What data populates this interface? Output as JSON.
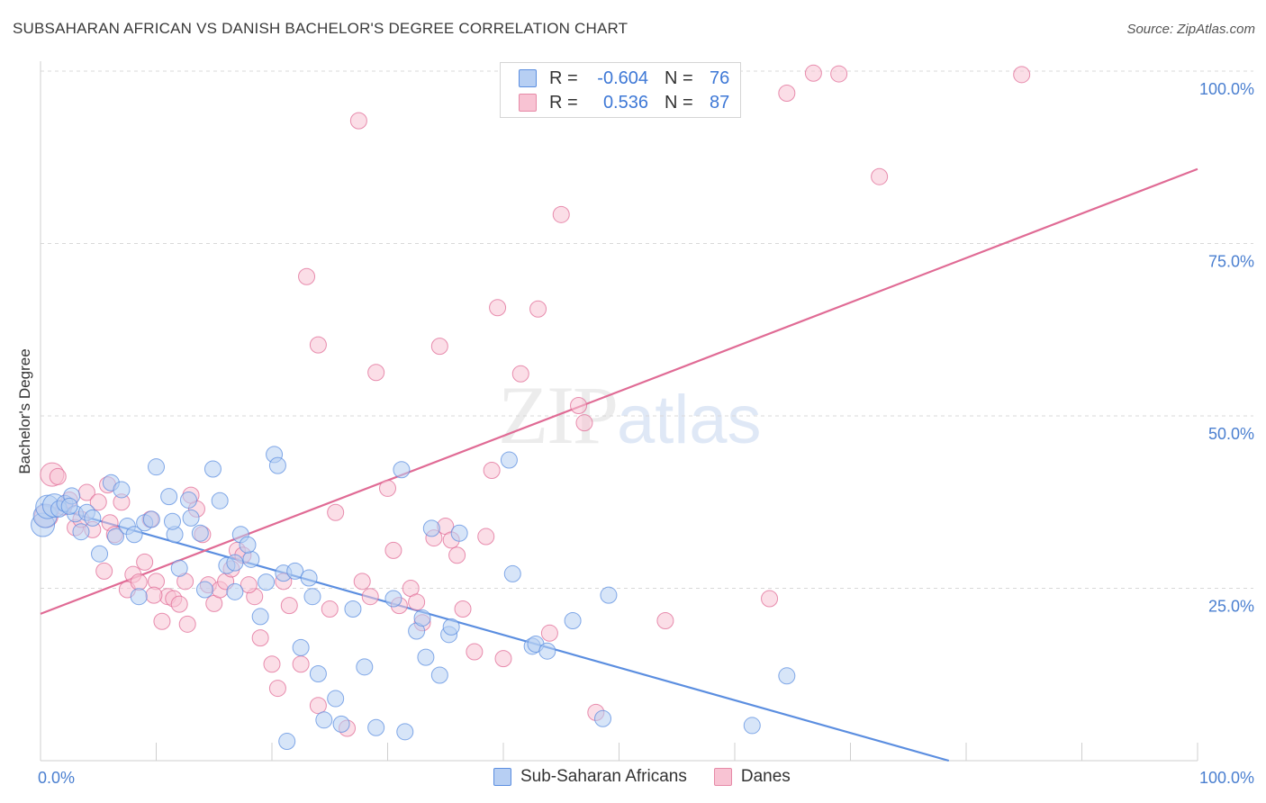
{
  "title": "SUBSAHARAN AFRICAN VS DANISH BACHELOR'S DEGREE CORRELATION CHART",
  "source": "Source: ZipAtlas.com",
  "watermark": {
    "zip": "ZIP",
    "atlas": "atlas"
  },
  "legend": {
    "rows": [
      {
        "r_label": "R =",
        "r_value": "-0.604",
        "n_label": "N =",
        "n_value": "76",
        "fill": "#b7cff3",
        "stroke": "#5b8ee0"
      },
      {
        "r_label": "R =",
        "r_value": "0.536",
        "n_label": "N =",
        "n_value": "87",
        "fill": "#f8c3d3",
        "stroke": "#e68aa7"
      }
    ]
  },
  "bottom_legend": {
    "items": [
      {
        "label": "Sub-Saharan Africans",
        "fill": "#b7cff3",
        "stroke": "#5b8ee0"
      },
      {
        "label": "Danes",
        "fill": "#f8c3d3",
        "stroke": "#e68aa7"
      }
    ]
  },
  "chart_data": {
    "type": "scatter",
    "title": "SUBSAHARAN AFRICAN VS DANISH BACHELOR'S DEGREE CORRELATION CHART",
    "xlabel": "",
    "ylabel": "Bachelor's Degree",
    "xlim": [
      0,
      100
    ],
    "ylim": [
      0,
      100
    ],
    "x_tick_labels": [
      "0.0%",
      "100.0%"
    ],
    "y_ticks": [
      25,
      50,
      75,
      100
    ],
    "y_tick_labels": [
      "25.0%",
      "50.0%",
      "75.0%",
      "100.0%"
    ],
    "grid": "horizontal dashed",
    "legend_position": "top-center",
    "series": [
      {
        "name": "Sub-Saharan Africans",
        "color": "#5b8ee0",
        "fill": "#b7cff3",
        "trend": {
          "x": [
            0,
            78.5
          ],
          "y": [
            37.2,
            0
          ]
        },
        "points": [
          [
            0.2,
            34.2
          ],
          [
            0.4,
            35.5
          ],
          [
            0.6,
            36.8
          ],
          [
            1.2,
            37.0
          ],
          [
            1.6,
            36.5
          ],
          [
            2.1,
            37.3
          ],
          [
            2.7,
            38.4
          ],
          [
            3.0,
            35.8
          ],
          [
            3.5,
            33.2
          ],
          [
            4.0,
            36.0
          ],
          [
            4.5,
            35.2
          ],
          [
            5.1,
            30.0
          ],
          [
            6.1,
            40.3
          ],
          [
            6.5,
            32.5
          ],
          [
            7.0,
            39.3
          ],
          [
            7.5,
            34.0
          ],
          [
            8.1,
            32.8
          ],
          [
            8.5,
            23.8
          ],
          [
            9.0,
            34.5
          ],
          [
            9.6,
            35.0
          ],
          [
            10.0,
            42.6
          ],
          [
            11.1,
            38.3
          ],
          [
            11.6,
            32.8
          ],
          [
            12.0,
            27.9
          ],
          [
            12.8,
            37.8
          ],
          [
            13.8,
            33.0
          ],
          [
            14.2,
            24.8
          ],
          [
            14.9,
            42.3
          ],
          [
            15.5,
            37.7
          ],
          [
            16.1,
            28.3
          ],
          [
            16.8,
            28.7
          ],
          [
            17.3,
            32.8
          ],
          [
            18.2,
            29.2
          ],
          [
            19.0,
            20.9
          ],
          [
            20.2,
            44.4
          ],
          [
            20.5,
            42.8
          ],
          [
            21.0,
            27.2
          ],
          [
            22.0,
            27.5
          ],
          [
            22.5,
            16.4
          ],
          [
            23.5,
            23.8
          ],
          [
            24.0,
            12.6
          ],
          [
            24.5,
            5.9
          ],
          [
            25.5,
            9.0
          ],
          [
            26.0,
            5.3
          ],
          [
            27.0,
            22.0
          ],
          [
            28.0,
            13.6
          ],
          [
            29.0,
            4.8
          ],
          [
            30.5,
            23.5
          ],
          [
            31.5,
            4.2
          ],
          [
            31.2,
            42.2
          ],
          [
            32.5,
            18.8
          ],
          [
            33.0,
            20.7
          ],
          [
            33.3,
            15.0
          ],
          [
            34.5,
            12.4
          ],
          [
            35.3,
            18.3
          ],
          [
            35.5,
            19.4
          ],
          [
            36.2,
            33.0
          ],
          [
            33.8,
            33.7
          ],
          [
            40.5,
            43.6
          ],
          [
            40.8,
            27.1
          ],
          [
            42.5,
            16.6
          ],
          [
            42.8,
            16.9
          ],
          [
            43.8,
            15.9
          ],
          [
            46.0,
            20.3
          ],
          [
            48.6,
            6.1
          ],
          [
            49.1,
            24.0
          ],
          [
            61.5,
            5.1
          ],
          [
            64.5,
            12.3
          ],
          [
            19.5,
            25.9
          ],
          [
            17.9,
            31.3
          ],
          [
            16.8,
            24.5
          ],
          [
            13.0,
            35.2
          ],
          [
            11.4,
            34.7
          ],
          [
            2.5,
            36.9
          ],
          [
            21.3,
            2.8
          ],
          [
            23.2,
            26.5
          ]
        ]
      },
      {
        "name": "Danes",
        "color": "#e06b95",
        "fill": "#f8c3d3",
        "trend": {
          "x": [
            0,
            100
          ],
          "y": [
            21.3,
            85.8
          ]
        },
        "points": [
          [
            0.5,
            35.5
          ],
          [
            1.0,
            41.5
          ],
          [
            1.5,
            41.2
          ],
          [
            2.0,
            36.8
          ],
          [
            2.5,
            37.8
          ],
          [
            3.0,
            33.8
          ],
          [
            3.5,
            35.0
          ],
          [
            4.0,
            38.9
          ],
          [
            4.5,
            33.5
          ],
          [
            5.0,
            37.5
          ],
          [
            5.5,
            27.5
          ],
          [
            6.0,
            34.5
          ],
          [
            6.4,
            32.8
          ],
          [
            7.0,
            37.5
          ],
          [
            7.5,
            24.8
          ],
          [
            8.0,
            27.0
          ],
          [
            8.5,
            25.9
          ],
          [
            9.0,
            28.8
          ],
          [
            9.5,
            35.0
          ],
          [
            10.0,
            26.0
          ],
          [
            10.5,
            20.2
          ],
          [
            11.0,
            23.8
          ],
          [
            11.5,
            23.5
          ],
          [
            12.0,
            22.7
          ],
          [
            12.5,
            26.0
          ],
          [
            13.5,
            36.5
          ],
          [
            14.0,
            32.8
          ],
          [
            14.5,
            25.5
          ],
          [
            15.0,
            22.8
          ],
          [
            15.5,
            24.8
          ],
          [
            16.0,
            26.0
          ],
          [
            16.5,
            27.8
          ],
          [
            17.0,
            30.5
          ],
          [
            17.5,
            29.8
          ],
          [
            18.5,
            23.8
          ],
          [
            19.0,
            17.8
          ],
          [
            20.0,
            14.0
          ],
          [
            20.5,
            10.5
          ],
          [
            21.5,
            22.5
          ],
          [
            22.5,
            14.0
          ],
          [
            23.0,
            70.2
          ],
          [
            24.0,
            60.3
          ],
          [
            25.0,
            22.0
          ],
          [
            25.5,
            36.0
          ],
          [
            26.5,
            4.7
          ],
          [
            27.5,
            92.8
          ],
          [
            28.5,
            23.8
          ],
          [
            29.0,
            56.3
          ],
          [
            30.0,
            39.5
          ],
          [
            30.5,
            30.5
          ],
          [
            31.0,
            22.5
          ],
          [
            32.0,
            25.0
          ],
          [
            32.5,
            23.0
          ],
          [
            33.0,
            20.0
          ],
          [
            34.0,
            32.3
          ],
          [
            34.5,
            60.1
          ],
          [
            35.0,
            34.0
          ],
          [
            36.0,
            29.8
          ],
          [
            36.5,
            22.0
          ],
          [
            37.5,
            15.8
          ],
          [
            38.5,
            32.5
          ],
          [
            39.0,
            42.1
          ],
          [
            39.5,
            65.7
          ],
          [
            40.0,
            14.8
          ],
          [
            41.5,
            56.1
          ],
          [
            43.0,
            65.5
          ],
          [
            44.0,
            18.5
          ],
          [
            45.0,
            79.2
          ],
          [
            46.5,
            51.5
          ],
          [
            47.0,
            49.0
          ],
          [
            48.0,
            7.0
          ],
          [
            54.0,
            20.3
          ],
          [
            63.0,
            23.5
          ],
          [
            64.5,
            96.8
          ],
          [
            66.8,
            99.7
          ],
          [
            69.0,
            99.6
          ],
          [
            72.5,
            84.7
          ],
          [
            84.8,
            99.5
          ],
          [
            24.0,
            8.0
          ],
          [
            18.0,
            25.5
          ],
          [
            12.7,
            19.8
          ],
          [
            27.8,
            26.0
          ],
          [
            35.5,
            32.0
          ],
          [
            21.0,
            26.0
          ],
          [
            13.0,
            38.5
          ],
          [
            9.8,
            24.0
          ],
          [
            5.8,
            40.0
          ]
        ]
      }
    ]
  }
}
